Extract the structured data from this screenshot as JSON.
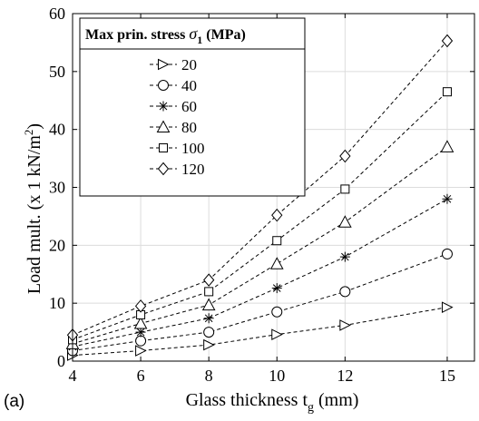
{
  "chart_data": {
    "type": "line",
    "panel_label": "(a)",
    "xlabel_main": "Glass thickness t",
    "xlabel_sub": "g",
    "xlabel_unit": " (mm)",
    "ylabel_main": "Load mult. (x 1 kN/m",
    "ylabel_sup": "2",
    "ylabel_end": ")",
    "x": [
      4,
      6,
      8,
      10,
      12,
      15
    ],
    "xlim": [
      4,
      15.8
    ],
    "ylim": [
      0,
      60
    ],
    "xticks": [
      "4",
      "6",
      "8",
      "10",
      "12",
      "15"
    ],
    "yticks": [
      "0",
      "10",
      "20",
      "30",
      "40",
      "50",
      "60"
    ],
    "grid": true,
    "legend_title_main": "Max prin. stress ",
    "legend_title_symbol": "σ",
    "legend_title_sub": "1",
    "legend_title_unit": " (MPa)",
    "legend_position": "top-left",
    "series": [
      {
        "name": "20",
        "marker": "triangle-right",
        "values": [
          1.0,
          1.8,
          2.8,
          4.6,
          6.2,
          9.3
        ]
      },
      {
        "name": "40",
        "marker": "circle",
        "values": [
          1.8,
          3.5,
          5.0,
          8.5,
          12.0,
          18.5
        ]
      },
      {
        "name": "60",
        "marker": "asterisk",
        "values": [
          2.5,
          5.0,
          7.4,
          12.6,
          18.0,
          28.0
        ]
      },
      {
        "name": "80",
        "marker": "triangle-up",
        "values": [
          3.0,
          6.5,
          9.7,
          16.8,
          24.0,
          37.0
        ]
      },
      {
        "name": "100",
        "marker": "square",
        "values": [
          3.7,
          8.0,
          12.0,
          20.8,
          29.7,
          46.5
        ]
      },
      {
        "name": "120",
        "marker": "diamond",
        "values": [
          4.5,
          9.5,
          14.0,
          25.2,
          35.4,
          55.3
        ]
      }
    ]
  }
}
